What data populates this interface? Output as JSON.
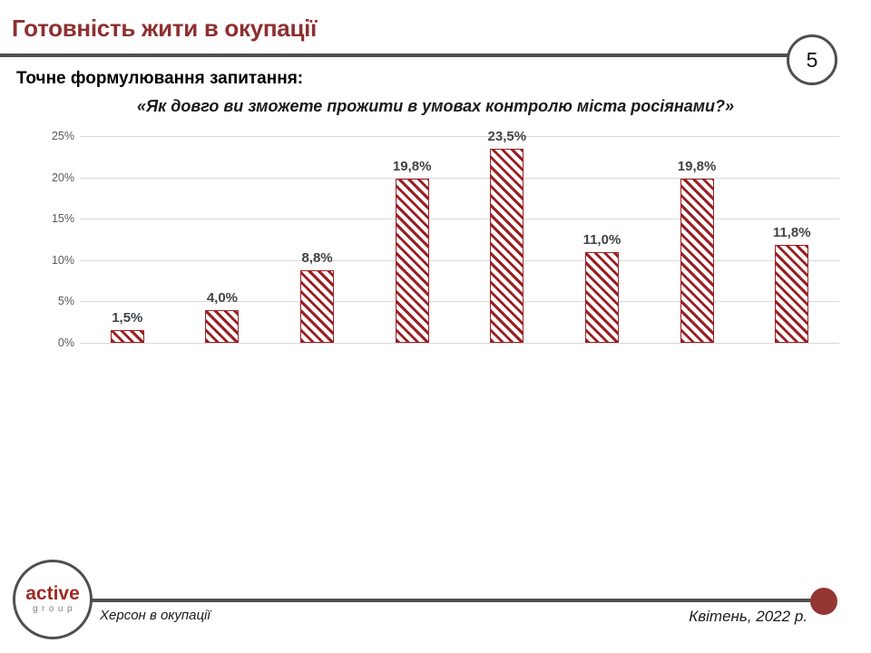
{
  "slide": {
    "title": "Готовність жити в окупації",
    "page_number": "5",
    "question_label": "Точне формулювання запитання:",
    "question_text": "«Як довго ви зможете прожити в умовах контролю міста росіянами?»"
  },
  "chart_data": {
    "type": "bar",
    "title": "",
    "xlabel": "",
    "ylabel": "",
    "categories": [
      "",
      "",
      "",
      "",
      "",
      "",
      "",
      ""
    ],
    "values": [
      1.5,
      4.0,
      8.8,
      19.8,
      23.5,
      11.0,
      19.8,
      11.8
    ],
    "data_labels": [
      "1,5%",
      "4,0%",
      "8,8%",
      "19,8%",
      "23,5%",
      "11,0%",
      "19,8%",
      "11,8%"
    ],
    "y_tick_values": [
      0,
      5,
      10,
      15,
      20,
      25
    ],
    "y_tick_labels": [
      "0%",
      "5%",
      "10%",
      "15%",
      "20%",
      "25%"
    ],
    "ylim": [
      0,
      25
    ],
    "grid": true,
    "legend": false,
    "bar_style": "diagonal-hatch",
    "bar_color": "#9A2023",
    "label_color": "#3F4447"
  },
  "footer": {
    "logo_text": "active",
    "logo_subtext": "group",
    "left_caption": "Херсон в окупації",
    "right_caption": "Квітень, 2022 р."
  },
  "colors": {
    "accent_red": "#8E2F30",
    "divider_gray": "#4f4f4f",
    "gridline_gray": "#d9d9d9",
    "tick_gray": "#595959",
    "footer_dot_red": "#943734"
  }
}
